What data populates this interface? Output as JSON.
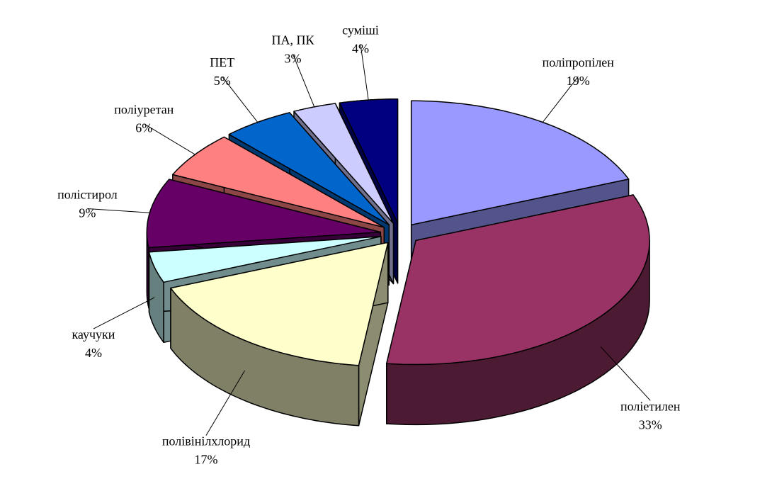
{
  "chart_data": {
    "type": "pie",
    "categories": [
      "поліпропілен",
      "поліетилен",
      "полівінілхлорид",
      "каучуки",
      "полістирол",
      "поліуретан",
      "ПЕТ",
      "ПА, ПК",
      "суміші"
    ],
    "values": [
      19,
      33,
      17,
      4,
      9,
      6,
      5,
      3,
      4
    ],
    "value_labels": [
      "19%",
      "33%",
      "17%",
      "4%",
      "9%",
      "6%",
      "5%",
      "3%",
      "4%"
    ],
    "colors": [
      "#9999ff",
      "#993366",
      "#ffffcc",
      "#ccffff",
      "#660066",
      "#ff8080",
      "#0066cc",
      "#ccccff",
      "#000080"
    ],
    "three_d": true,
    "exploded": true
  }
}
